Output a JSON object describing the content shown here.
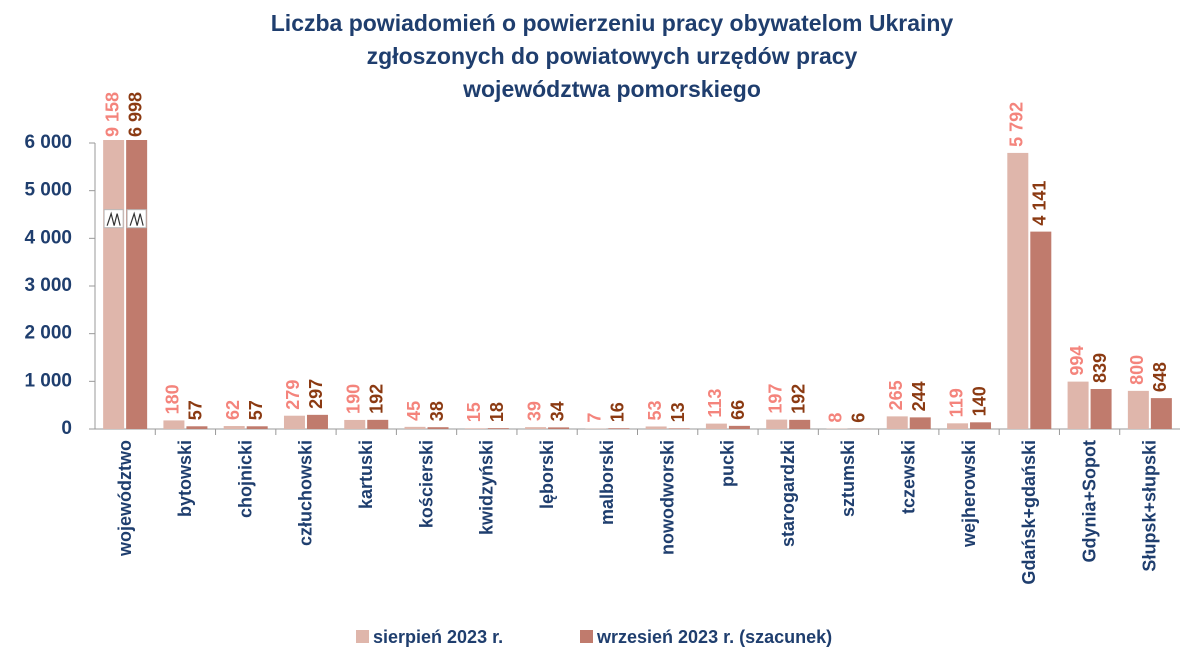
{
  "chart_data": {
    "type": "bar",
    "title": [
      "Liczba powiadomień o powierzeniu pracy obywatelom Ukrainy",
      "zgłoszonych do powiatowych urzędów pracy",
      "województwa pomorskiego"
    ],
    "categories": [
      "województwo",
      "bytowski",
      "chojnicki",
      "człuchowski",
      "kartuski",
      "kościerski",
      "kwidzyński",
      "lęborski",
      "malborski",
      "nowodworski",
      "pucki",
      "starogardzki",
      "sztumski",
      "tczewski",
      "wejherowski",
      "Gdańsk+gdański",
      "Gdynia+Sopot",
      "Słupsk+słupski"
    ],
    "series": [
      {
        "name": "sierpień 2023 r.",
        "color": "#dfb6ab",
        "label_color": "#f4847c",
        "values": [
          9158,
          180,
          62,
          279,
          190,
          45,
          15,
          39,
          7,
          53,
          113,
          197,
          8,
          265,
          119,
          5792,
          994,
          800
        ],
        "value_labels": [
          "9 158",
          "180",
          "62",
          "279",
          "190",
          "45",
          "15",
          "39",
          "7",
          "53",
          "113",
          "197",
          "8",
          "265",
          "119",
          "5 792",
          "994",
          "800"
        ]
      },
      {
        "name": "wrzesień 2023 r. (szacunek)",
        "color": "#c07b6d",
        "label_color": "#8b3a12",
        "values": [
          6998,
          57,
          57,
          297,
          192,
          38,
          18,
          34,
          16,
          13,
          66,
          192,
          6,
          244,
          140,
          4141,
          839,
          648
        ],
        "value_labels": [
          "6 998",
          "57",
          "57",
          "297",
          "192",
          "38",
          "18",
          "34",
          "16",
          "13",
          "66",
          "192",
          "6",
          "244",
          "140",
          "4 141",
          "839",
          "648"
        ]
      }
    ],
    "ylim": [
      0,
      6000
    ],
    "yticks": [
      0,
      {
        "value": 1000,
        "label": "1 000"
      },
      {
        "value": 2000,
        "label": "2 000"
      },
      {
        "value": 3000,
        "label": "3 000"
      },
      {
        "value": 4000,
        "label": "4 000"
      },
      {
        "value": 5000,
        "label": "5 000"
      },
      {
        "value": 6000,
        "label": "6 000"
      }
    ],
    "grid": false,
    "legend": "bottom"
  }
}
